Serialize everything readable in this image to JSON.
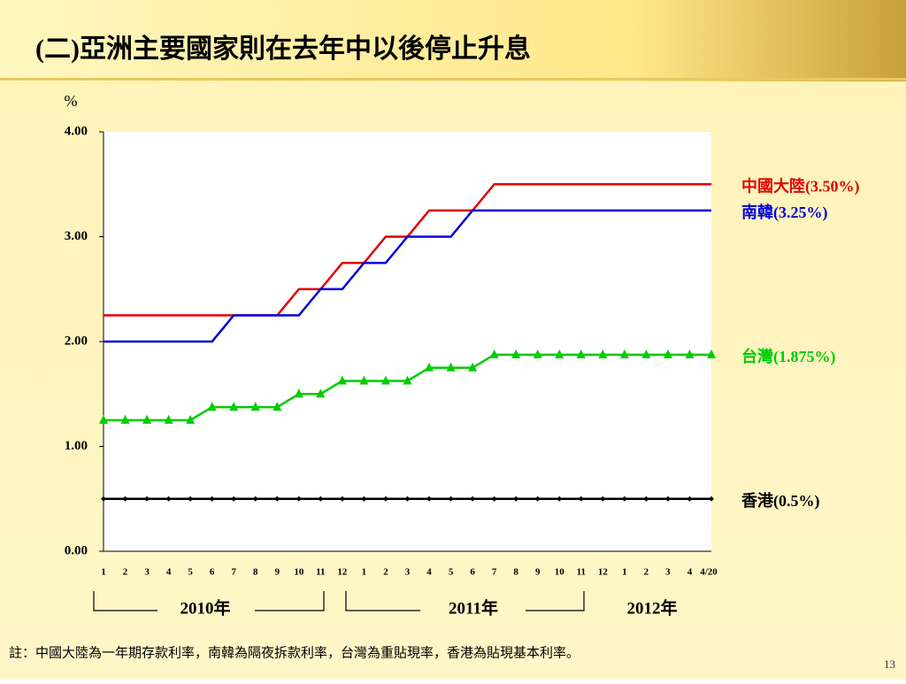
{
  "title": "(二)亞洲主要國家則在去年中以後停止升息",
  "note": "註：中國大陸為一年期存款利率，南韓為隔夜拆款利率，台灣為重貼現率，香港為貼現基本利率。",
  "page_number": "13",
  "chart_data": {
    "type": "line",
    "ylabel": "%",
    "categories": [
      "1",
      "2",
      "3",
      "4",
      "5",
      "6",
      "7",
      "8",
      "9",
      "10",
      "11",
      "12",
      "1",
      "2",
      "3",
      "4",
      "5",
      "6",
      "7",
      "8",
      "9",
      "10",
      "11",
      "12",
      "1",
      "2",
      "3",
      "4",
      "4/20"
    ],
    "year_labels": [
      "2010年",
      "2011年",
      "2012年"
    ],
    "ylim": [
      0,
      4
    ],
    "yticks": [
      {
        "value": 0,
        "label": "0.00"
      },
      {
        "value": 1,
        "label": "1.00"
      },
      {
        "value": 2,
        "label": "2.00"
      },
      {
        "value": 3,
        "label": "3.00"
      },
      {
        "value": 4,
        "label": "4.00"
      }
    ],
    "series": [
      {
        "name": "中國大陸(3.50%)",
        "color": "#e00000",
        "marker": "none",
        "values": [
          2.25,
          2.25,
          2.25,
          2.25,
          2.25,
          2.25,
          2.25,
          2.25,
          2.25,
          2.5,
          2.5,
          2.75,
          2.75,
          3,
          3,
          3.25,
          3.25,
          3.25,
          3.5,
          3.5,
          3.5,
          3.5,
          3.5,
          3.5,
          3.5,
          3.5,
          3.5,
          3.5,
          3.5
        ]
      },
      {
        "name": "南韓(3.25%)",
        "color": "#0000dd",
        "marker": "none",
        "values": [
          2,
          2,
          2,
          2,
          2,
          2,
          2.25,
          2.25,
          2.25,
          2.25,
          2.5,
          2.5,
          2.75,
          2.75,
          3,
          3,
          3,
          3.25,
          3.25,
          3.25,
          3.25,
          3.25,
          3.25,
          3.25,
          3.25,
          3.25,
          3.25,
          3.25,
          3.25
        ]
      },
      {
        "name": "台灣(1.875%)",
        "color": "#00cc00",
        "marker": "triangle",
        "values": [
          1.25,
          1.25,
          1.25,
          1.25,
          1.25,
          1.375,
          1.375,
          1.375,
          1.375,
          1.5,
          1.5,
          1.625,
          1.625,
          1.625,
          1.625,
          1.75,
          1.75,
          1.75,
          1.875,
          1.875,
          1.875,
          1.875,
          1.875,
          1.875,
          1.875,
          1.875,
          1.875,
          1.875,
          1.875
        ]
      },
      {
        "name": "香港(0.5%)",
        "color": "#000000",
        "marker": "diamond",
        "values": [
          0.5,
          0.5,
          0.5,
          0.5,
          0.5,
          0.5,
          0.5,
          0.5,
          0.5,
          0.5,
          0.5,
          0.5,
          0.5,
          0.5,
          0.5,
          0.5,
          0.5,
          0.5,
          0.5,
          0.5,
          0.5,
          0.5,
          0.5,
          0.5,
          0.5,
          0.5,
          0.5,
          0.5,
          0.5
        ]
      }
    ]
  }
}
